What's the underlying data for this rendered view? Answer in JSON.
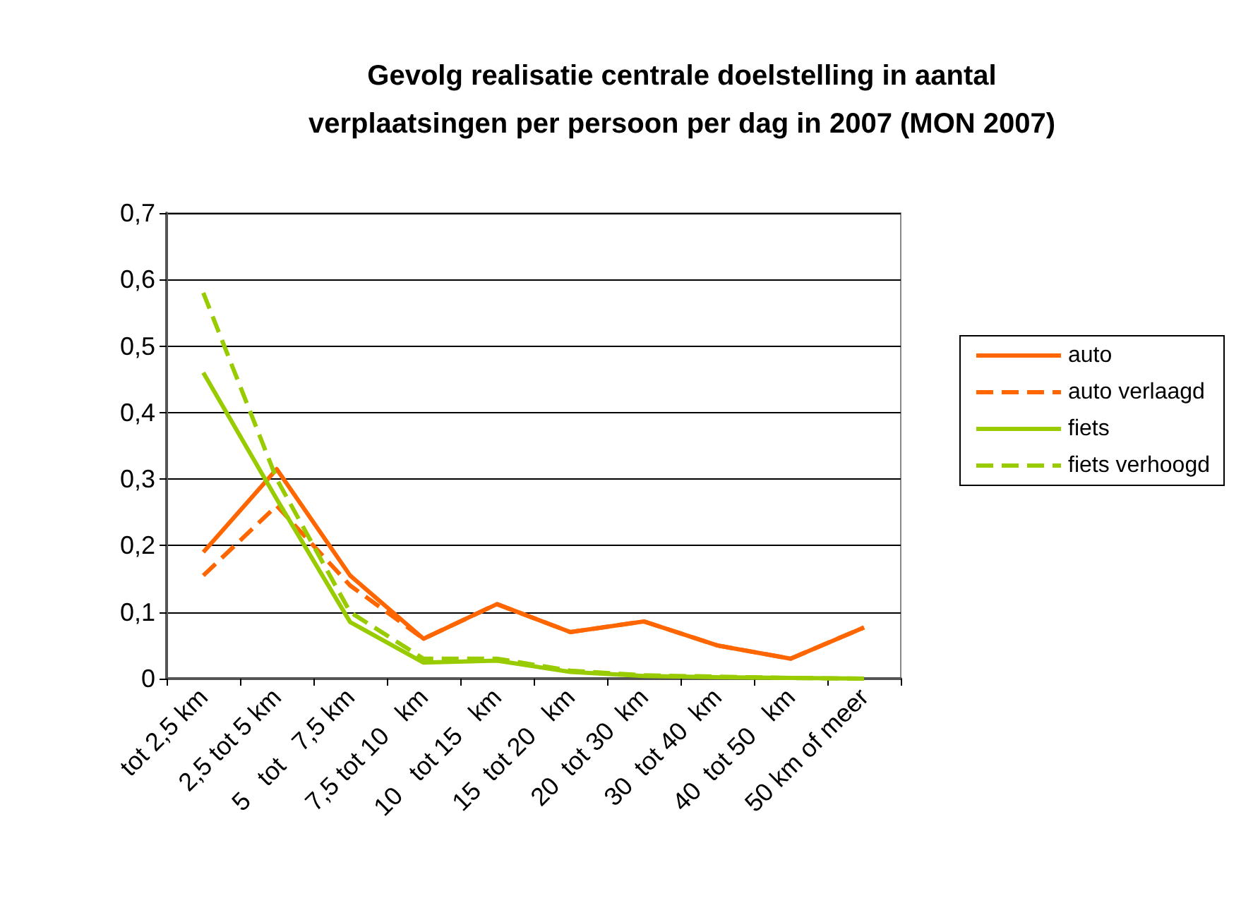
{
  "chart_data": {
    "type": "line",
    "title": "Gevolg realisatie centrale doelstelling in aantal\nverplaatsingen per persoon per dag in 2007 (MON 2007)",
    "categories": [
      "tot 2,5 km",
      "2,5 tot 5 km",
      "5   tot   7,5 km",
      "7,5 tot 10   km",
      "10   tot 15   km",
      "15  tot 20   km",
      "20  tot 30  km",
      "30  tot 40  km",
      "40  tot 50   km",
      "50 km of meer"
    ],
    "series": [
      {
        "name": "auto",
        "color": "#ff6600",
        "line_style": "solid",
        "values": [
          0.19,
          0.315,
          0.155,
          0.06,
          0.112,
          0.07,
          0.086,
          0.05,
          0.03,
          0.077
        ]
      },
      {
        "name": "auto verlaagd",
        "color": "#ff6600",
        "line_style": "dashed",
        "values": [
          0.155,
          0.26,
          0.14,
          0.06,
          0.112,
          0.07,
          0.086,
          0.05,
          0.03,
          0.077
        ]
      },
      {
        "name": "fiets",
        "color": "#99cc00",
        "line_style": "solid",
        "values": [
          0.46,
          0.27,
          0.085,
          0.024,
          0.027,
          0.01,
          0.004,
          0.002,
          0.001,
          0
        ]
      },
      {
        "name": "fiets verhoogd",
        "color": "#99cc00",
        "line_style": "dashed",
        "values": [
          0.58,
          0.3,
          0.1,
          0.03,
          0.03,
          0.012,
          0.005,
          0.003,
          0.001,
          0
        ]
      }
    ],
    "ylim": [
      0,
      0.7
    ],
    "yticks": [
      0,
      {
        "value": 0.1,
        "label": "0,1"
      },
      {
        "value": 0.2,
        "label": "0,2"
      },
      {
        "value": 0.3,
        "label": "0,3"
      },
      {
        "value": 0.4,
        "label": "0,4"
      },
      {
        "value": 0.5,
        "label": "0,5"
      },
      {
        "value": 0.6,
        "label": "0,6"
      },
      {
        "value": 0.7,
        "label": "0,7"
      }
    ],
    "grid": "y",
    "legend": "right",
    "marker": "none"
  }
}
